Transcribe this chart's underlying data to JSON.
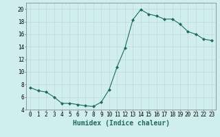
{
  "x": [
    0,
    1,
    2,
    3,
    4,
    5,
    6,
    7,
    8,
    9,
    10,
    11,
    12,
    13,
    14,
    15,
    16,
    17,
    18,
    19,
    20,
    21,
    22,
    23
  ],
  "y": [
    7.5,
    7.0,
    6.8,
    6.0,
    5.0,
    5.0,
    4.8,
    4.6,
    4.5,
    5.2,
    7.2,
    10.8,
    13.8,
    18.3,
    19.9,
    19.2,
    18.9,
    18.4,
    18.4,
    17.6,
    16.4,
    16.0,
    15.2,
    15.0
  ],
  "line_color": "#1a6b5a",
  "marker": "D",
  "marker_size": 2.0,
  "bg_color": "#d0eeee",
  "grid_color": "#c4d8d8",
  "xlabel": "Humidex (Indice chaleur)",
  "ylim": [
    4,
    21
  ],
  "xlim": [
    -0.5,
    23.5
  ],
  "yticks": [
    4,
    6,
    8,
    10,
    12,
    14,
    16,
    18,
    20
  ],
  "xticks": [
    0,
    1,
    2,
    3,
    4,
    5,
    6,
    7,
    8,
    9,
    10,
    11,
    12,
    13,
    14,
    15,
    16,
    17,
    18,
    19,
    20,
    21,
    22,
    23
  ],
  "xtick_labels": [
    "0",
    "1",
    "2",
    "3",
    "4",
    "5",
    "6",
    "7",
    "8",
    "9",
    "10",
    "11",
    "12",
    "13",
    "14",
    "15",
    "16",
    "17",
    "18",
    "19",
    "20",
    "21",
    "22",
    "23"
  ],
  "font_size": 5.5,
  "label_font_size": 7.0,
  "line_width": 0.8
}
